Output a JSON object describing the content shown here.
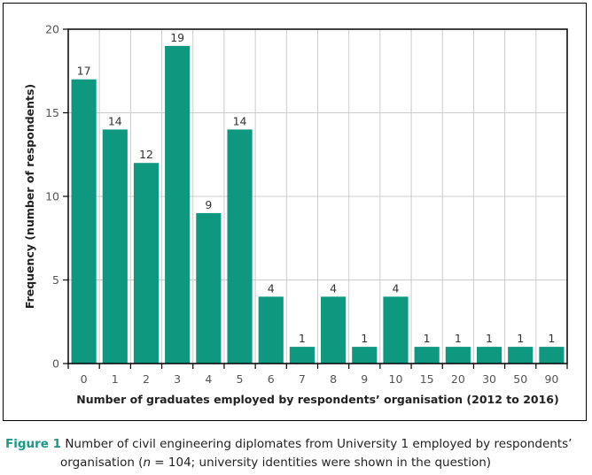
{
  "chart_data": {
    "type": "bar",
    "title": "",
    "xlabel": "Number of graduates employed by respondents’ organisation (2012 to 2016)",
    "ylabel": "Frequency (number of respondents)",
    "categories": [
      "0",
      "1",
      "2",
      "3",
      "4",
      "5",
      "6",
      "7",
      "8",
      "9",
      "10",
      "15",
      "20",
      "30",
      "50",
      "90"
    ],
    "values": [
      17,
      14,
      12,
      19,
      9,
      14,
      4,
      1,
      4,
      1,
      4,
      1,
      1,
      1,
      1,
      1
    ],
    "ylim": [
      0,
      20
    ],
    "yticks": [
      0,
      5,
      10,
      15,
      20
    ],
    "grid": true,
    "legend": "none",
    "bar_color": "#0f9880",
    "grid_color": "#cccccc"
  },
  "caption": {
    "figure_label": "Figure 1",
    "text_line1": "Number of civil engineering diplomates from University 1 employed by respondents’",
    "text_line2_pre": "organisation (",
    "text_line2_n": "n",
    "text_line2_post": " = 104; university identities were shown in the question)"
  }
}
